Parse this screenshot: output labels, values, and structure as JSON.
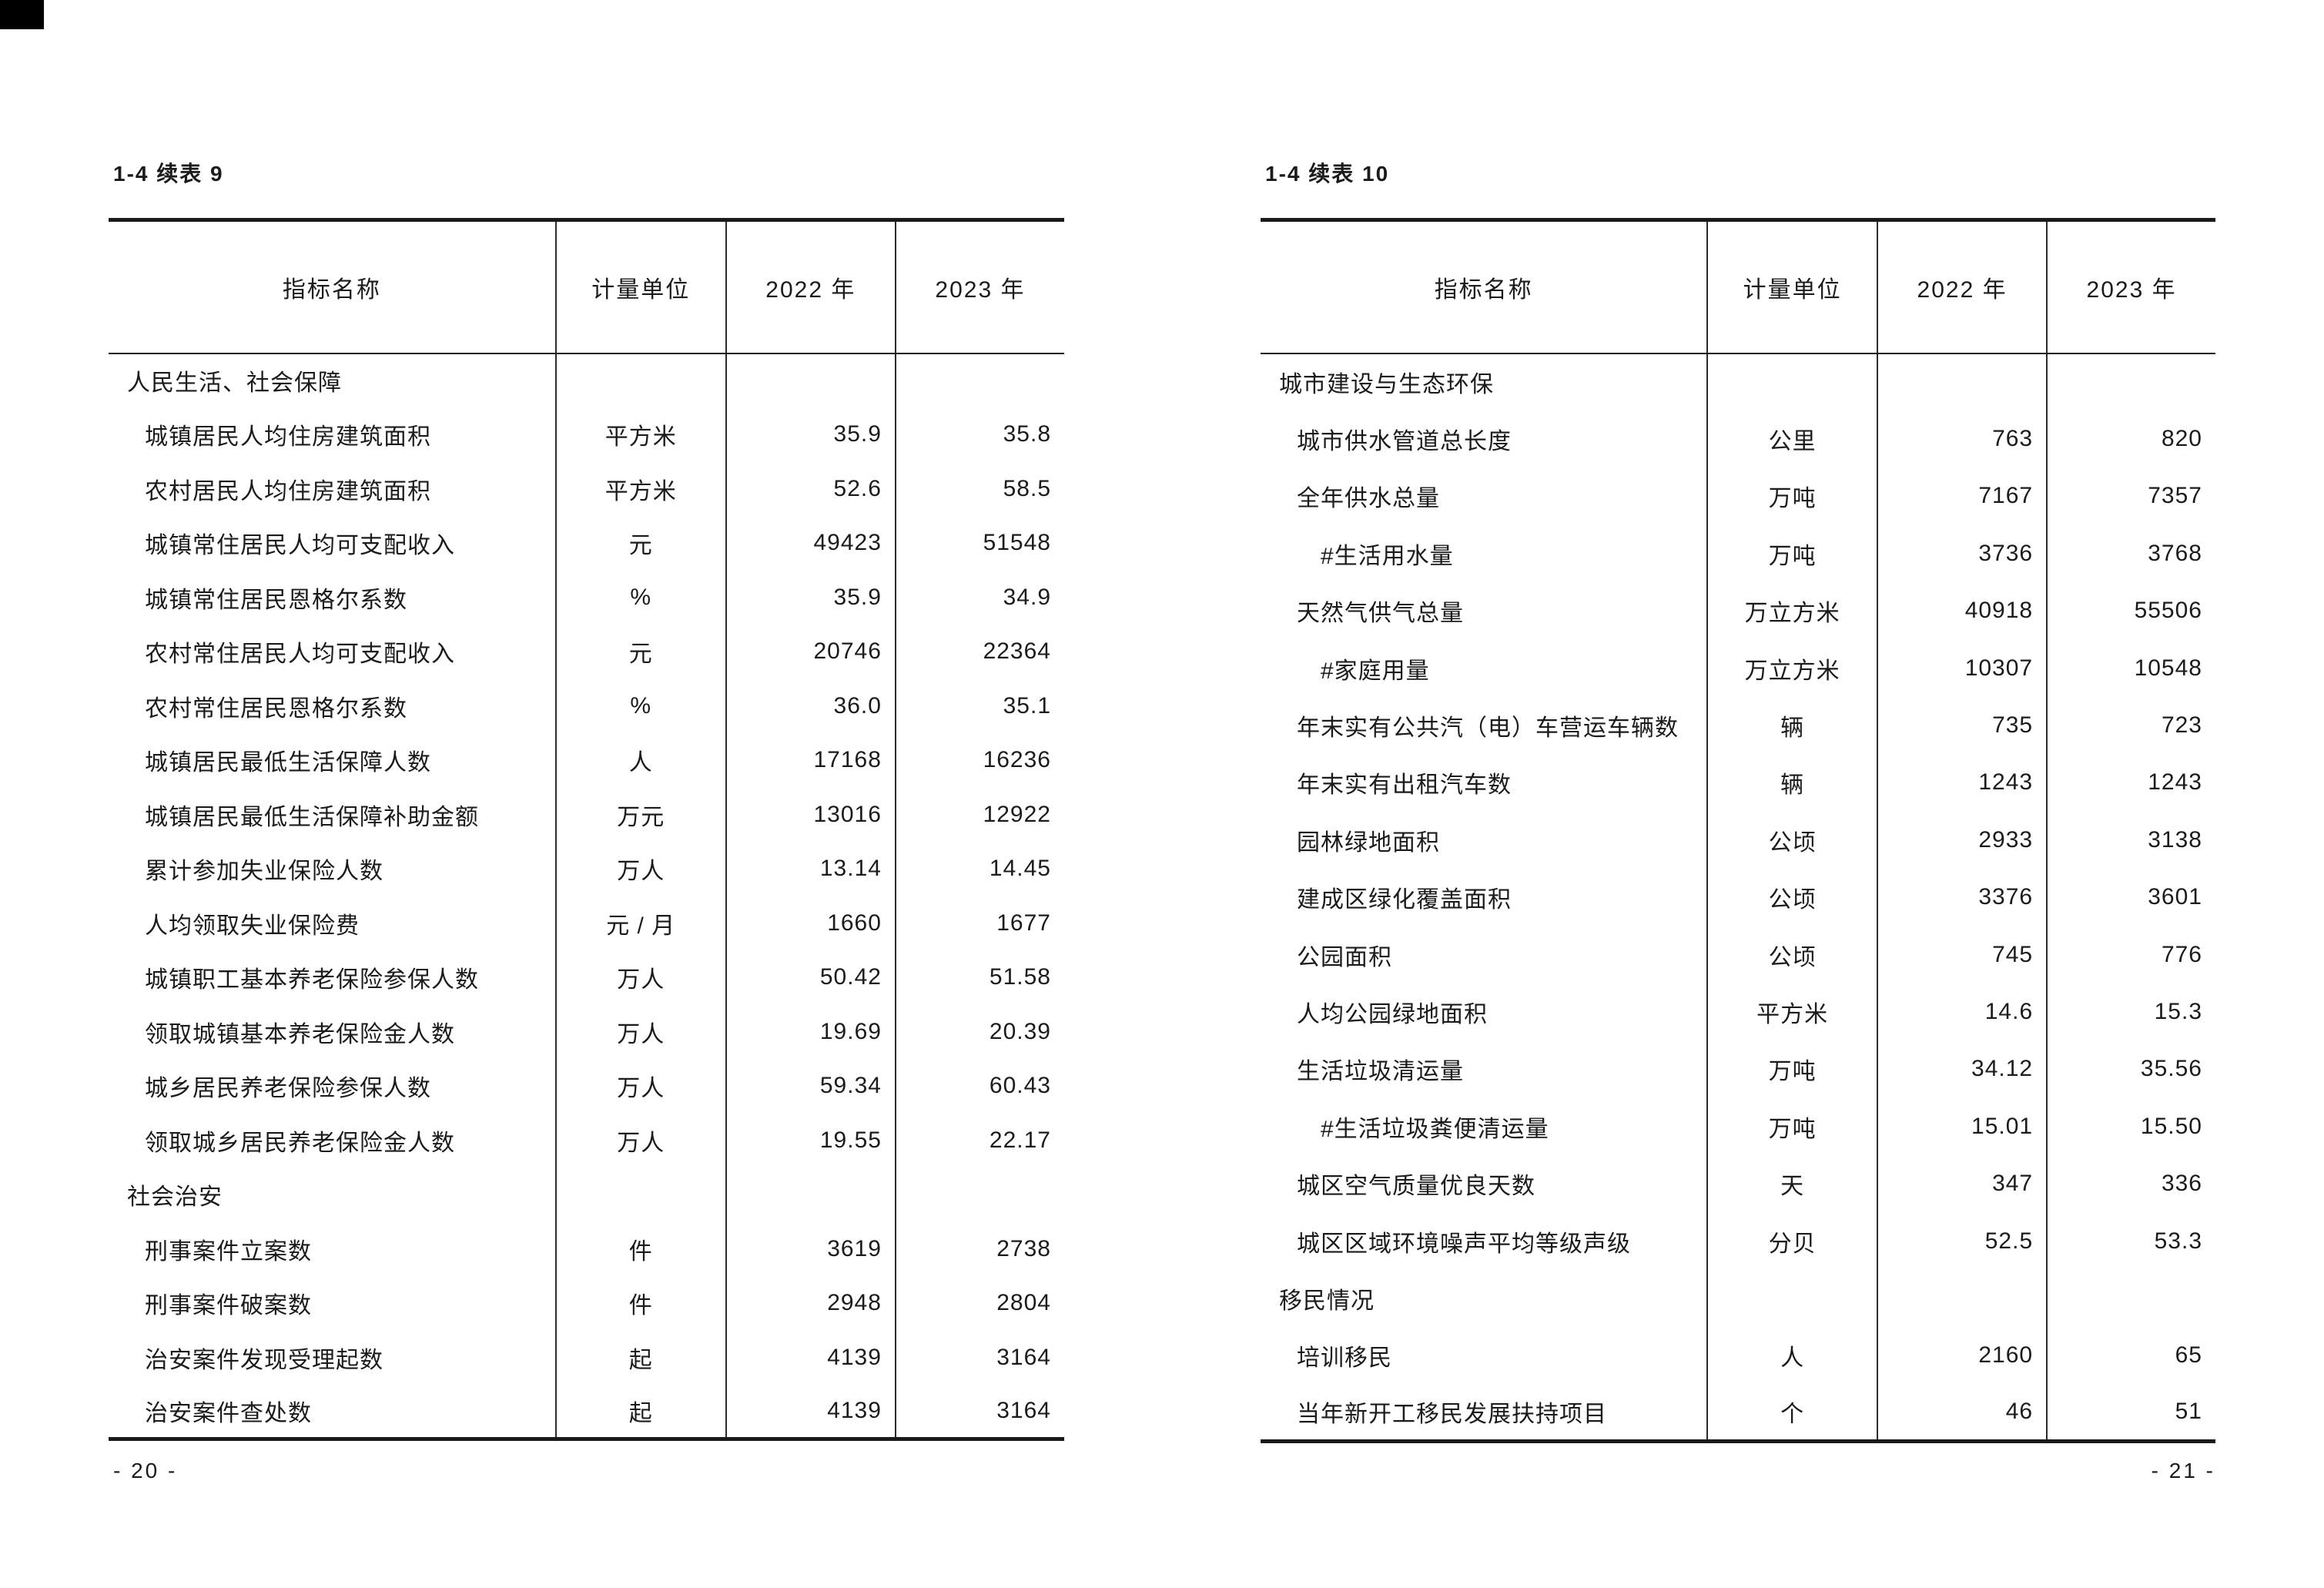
{
  "colors": {
    "text": "#1b1b1b",
    "rule": "#1a1a1a",
    "background": "#ffffff"
  },
  "pages": [
    {
      "title": "1-4 续表 9",
      "footer": "- 20 -",
      "columns": [
        "指标名称",
        "计量单位",
        "2022 年",
        "2023 年"
      ],
      "rows": [
        {
          "label": "人民生活、社会保障",
          "indent": 0,
          "unit": "",
          "v2022": "",
          "v2023": ""
        },
        {
          "label": "城镇居民人均住房建筑面积",
          "indent": 1,
          "unit": "平方米",
          "v2022": "35.9",
          "v2023": "35.8"
        },
        {
          "label": "农村居民人均住房建筑面积",
          "indent": 1,
          "unit": "平方米",
          "v2022": "52.6",
          "v2023": "58.5"
        },
        {
          "label": "城镇常住居民人均可支配收入",
          "indent": 1,
          "unit": "元",
          "v2022": "49423",
          "v2023": "51548"
        },
        {
          "label": "城镇常住居民恩格尔系数",
          "indent": 1,
          "unit": "%",
          "v2022": "35.9",
          "v2023": "34.9"
        },
        {
          "label": "农村常住居民人均可支配收入",
          "indent": 1,
          "unit": "元",
          "v2022": "20746",
          "v2023": "22364"
        },
        {
          "label": "农村常住居民恩格尔系数",
          "indent": 1,
          "unit": "%",
          "v2022": "36.0",
          "v2023": "35.1"
        },
        {
          "label": "城镇居民最低生活保障人数",
          "indent": 1,
          "unit": "人",
          "v2022": "17168",
          "v2023": "16236"
        },
        {
          "label": "城镇居民最低生活保障补助金额",
          "indent": 1,
          "unit": "万元",
          "v2022": "13016",
          "v2023": "12922"
        },
        {
          "label": "累计参加失业保险人数",
          "indent": 1,
          "unit": "万人",
          "v2022": "13.14",
          "v2023": "14.45"
        },
        {
          "label": "人均领取失业保险费",
          "indent": 1,
          "unit": "元 / 月",
          "v2022": "1660",
          "v2023": "1677"
        },
        {
          "label": "城镇职工基本养老保险参保人数",
          "indent": 1,
          "unit": "万人",
          "v2022": "50.42",
          "v2023": "51.58"
        },
        {
          "label": "领取城镇基本养老保险金人数",
          "indent": 1,
          "unit": "万人",
          "v2022": "19.69",
          "v2023": "20.39"
        },
        {
          "label": "城乡居民养老保险参保人数",
          "indent": 1,
          "unit": "万人",
          "v2022": "59.34",
          "v2023": "60.43"
        },
        {
          "label": "领取城乡居民养老保险金人数",
          "indent": 1,
          "unit": "万人",
          "v2022": "19.55",
          "v2023": "22.17"
        },
        {
          "label": "社会治安",
          "indent": 0,
          "unit": "",
          "v2022": "",
          "v2023": ""
        },
        {
          "label": "刑事案件立案数",
          "indent": 1,
          "unit": "件",
          "v2022": "3619",
          "v2023": "2738"
        },
        {
          "label": "刑事案件破案数",
          "indent": 1,
          "unit": "件",
          "v2022": "2948",
          "v2023": "2804"
        },
        {
          "label": "治安案件发现受理起数",
          "indent": 1,
          "unit": "起",
          "v2022": "4139",
          "v2023": "3164"
        },
        {
          "label": "治安案件查处数",
          "indent": 1,
          "unit": "起",
          "v2022": "4139",
          "v2023": "3164"
        }
      ]
    },
    {
      "title": "1-4 续表 10",
      "footer": "- 21 -",
      "columns": [
        "指标名称",
        "计量单位",
        "2022 年",
        "2023 年"
      ],
      "rows": [
        {
          "label": "城市建设与生态环保",
          "indent": 0,
          "unit": "",
          "v2022": "",
          "v2023": ""
        },
        {
          "label": "城市供水管道总长度",
          "indent": 1,
          "unit": "公里",
          "v2022": "763",
          "v2023": "820"
        },
        {
          "label": "全年供水总量",
          "indent": 1,
          "unit": "万吨",
          "v2022": "7167",
          "v2023": "7357"
        },
        {
          "label": "#生活用水量",
          "indent": 2,
          "unit": "万吨",
          "v2022": "3736",
          "v2023": "3768"
        },
        {
          "label": "天然气供气总量",
          "indent": 1,
          "unit": "万立方米",
          "v2022": "40918",
          "v2023": "55506"
        },
        {
          "label": "#家庭用量",
          "indent": 2,
          "unit": "万立方米",
          "v2022": "10307",
          "v2023": "10548"
        },
        {
          "label": "年末实有公共汽（电）车营运车辆数",
          "indent": 1,
          "unit": "辆",
          "v2022": "735",
          "v2023": "723"
        },
        {
          "label": "年末实有出租汽车数",
          "indent": 1,
          "unit": "辆",
          "v2022": "1243",
          "v2023": "1243"
        },
        {
          "label": "园林绿地面积",
          "indent": 1,
          "unit": "公顷",
          "v2022": "2933",
          "v2023": "3138"
        },
        {
          "label": "建成区绿化覆盖面积",
          "indent": 1,
          "unit": "公顷",
          "v2022": "3376",
          "v2023": "3601"
        },
        {
          "label": "公园面积",
          "indent": 1,
          "unit": "公顷",
          "v2022": "745",
          "v2023": "776"
        },
        {
          "label": "人均公园绿地面积",
          "indent": 1,
          "unit": "平方米",
          "v2022": "14.6",
          "v2023": "15.3"
        },
        {
          "label": "生活垃圾清运量",
          "indent": 1,
          "unit": "万吨",
          "v2022": "34.12",
          "v2023": "35.56"
        },
        {
          "label": "#生活垃圾粪便清运量",
          "indent": 2,
          "unit": "万吨",
          "v2022": "15.01",
          "v2023": "15.50"
        },
        {
          "label": "城区空气质量优良天数",
          "indent": 1,
          "unit": "天",
          "v2022": "347",
          "v2023": "336"
        },
        {
          "label": "城区区域环境噪声平均等级声级",
          "indent": 1,
          "unit": "分贝",
          "v2022": "52.5",
          "v2023": "53.3"
        },
        {
          "label": "移民情况",
          "indent": 0,
          "unit": "",
          "v2022": "",
          "v2023": ""
        },
        {
          "label": "培训移民",
          "indent": 1,
          "unit": "人",
          "v2022": "2160",
          "v2023": "65"
        },
        {
          "label": "当年新开工移民发展扶持项目",
          "indent": 1,
          "unit": "个",
          "v2022": "46",
          "v2023": "51"
        }
      ]
    }
  ]
}
